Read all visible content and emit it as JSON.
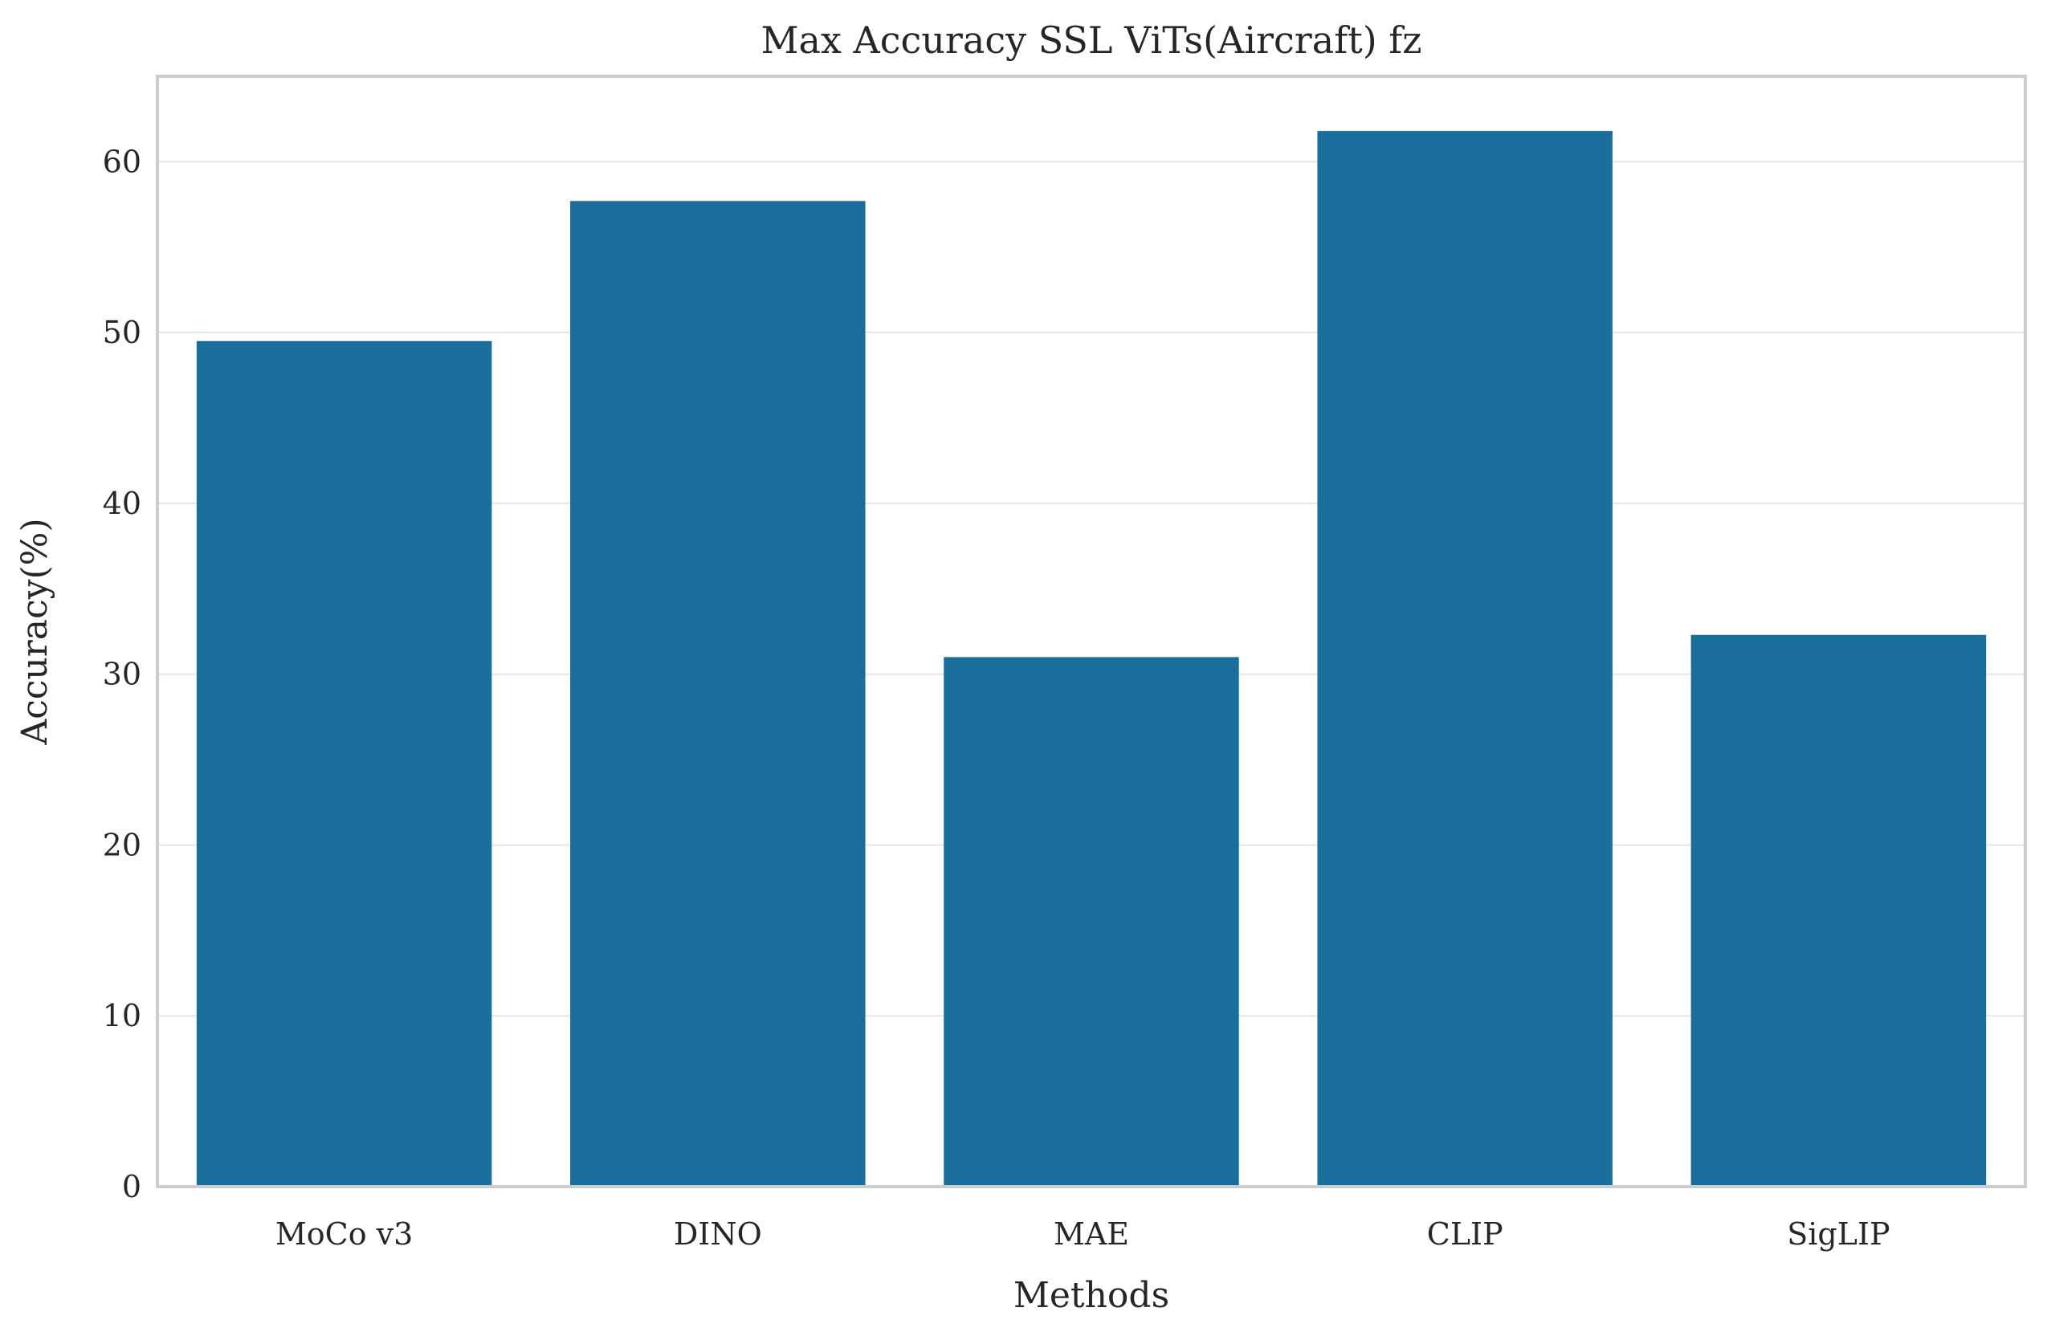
{
  "chart_data": {
    "type": "bar",
    "title": "Max Accuracy SSL ViTs(Aircraft) fz",
    "xlabel": "Methods",
    "ylabel": "Accuracy(%)",
    "categories": [
      "MoCo v3",
      "DINO",
      "MAE",
      "CLIP",
      "SigLIP"
    ],
    "values": [
      49.5,
      57.7,
      31.0,
      61.8,
      32.3
    ],
    "ylim": [
      0,
      65
    ],
    "yticks": [
      0,
      10,
      20,
      30,
      40,
      50,
      60
    ],
    "grid": true,
    "colors": {
      "bar": "#1a6e9c",
      "grid": "#e5e5e5",
      "frame": "#cccccc",
      "text": "#262626"
    }
  }
}
